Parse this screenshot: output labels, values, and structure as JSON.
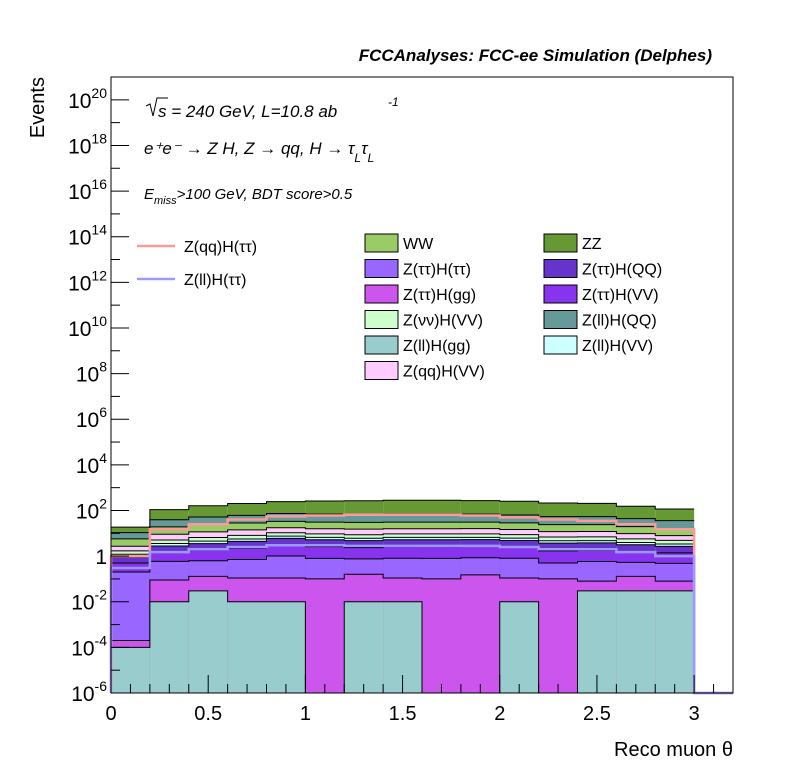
{
  "chart_data": {
    "type": "bar",
    "title": "FCCAnalyses: FCC-ee Simulation (Delphes)",
    "xlabel": "Reco muon θ",
    "ylabel": "Events",
    "xlim": [
      0,
      3.2
    ],
    "ylim": [
      1e-06,
      1e+21
    ],
    "ylog": true,
    "x_ticks": [
      "0",
      "0.5",
      "1",
      "1.5",
      "2",
      "2.5",
      "3"
    ],
    "y_ticks": [
      {
        "base": "10",
        "exp": "-6"
      },
      {
        "base": "10",
        "exp": "-4"
      },
      {
        "base": "10",
        "exp": "-2"
      },
      {
        "base": "1",
        "exp": ""
      },
      {
        "base": "10",
        "exp": "2"
      },
      {
        "base": "10",
        "exp": "4"
      },
      {
        "base": "10",
        "exp": "6"
      },
      {
        "base": "10",
        "exp": "8"
      },
      {
        "base": "10",
        "exp": "10"
      },
      {
        "base": "10",
        "exp": "12"
      },
      {
        "base": "10",
        "exp": "14"
      },
      {
        "base": "10",
        "exp": "16"
      },
      {
        "base": "10",
        "exp": "18"
      },
      {
        "base": "10",
        "exp": "20"
      }
    ],
    "annotations": {
      "sqrt_sym": "√",
      "energy_s": "s",
      "energy_rest": " = 240 GeV, L=10.8 ab",
      "energy_exp": "-1",
      "process": "e⁺e⁻ → Z H, Z → qq, H → τ",
      "process_sub1": "L",
      "process_tau2": "τ",
      "process_sub2": "L",
      "cut_e": "E",
      "cut_sub": "miss",
      "cut_rest": ">100 GeV, BDT score>0.5"
    },
    "bin_edges": [
      0,
      0.2,
      0.4,
      0.6,
      0.8,
      1.0,
      1.2,
      1.4,
      1.6,
      1.8,
      2.0,
      2.2,
      2.4,
      2.6,
      2.8,
      3.0
    ],
    "stack_series": [
      {
        "name": "Z(ll)H(gg)",
        "color": "#99cccc",
        "values": [
          0.0001,
          0.01,
          0.03,
          0.01,
          0.01,
          1e-06,
          0.01,
          0.01,
          1e-06,
          1e-06,
          0.01,
          1e-06,
          0.03,
          0.03,
          0.03
        ]
      },
      {
        "name": "Z(ττ)H(gg)",
        "color": "#cc55ee",
        "values": [
          0.0001,
          0.08,
          0.1,
          0.1,
          0.1,
          0.1,
          0.15,
          0.1,
          0.1,
          0.15,
          0.1,
          0.1,
          0.05,
          0.1,
          0.05
        ]
      },
      {
        "name": "Z(ττ)H(ττ)",
        "color": "#9966ff",
        "values": [
          0.2,
          0.5,
          0.5,
          0.6,
          0.9,
          0.7,
          0.6,
          0.7,
          0.7,
          0.7,
          0.7,
          0.4,
          0.5,
          0.4,
          0.4
        ]
      },
      {
        "name": "Z(ττ)H(VV)",
        "color": "#8833ee",
        "values": [
          0.3,
          1.0,
          1.2,
          1.5,
          2.0,
          1.8,
          1.6,
          1.8,
          1.8,
          1.8,
          1.6,
          1.2,
          1.2,
          1.0,
          0.9
        ]
      },
      {
        "name": "Z(ττ)H(QQ)",
        "color": "#6633cc",
        "values": [
          0.4,
          1.2,
          1.7,
          2.2,
          3.0,
          2.6,
          2.4,
          2.6,
          2.6,
          2.6,
          2.4,
          2.0,
          2.0,
          1.6,
          1.3
        ]
      },
      {
        "name": "Z(ll)H(VV)",
        "color": "#ccffff",
        "values": [
          0.3,
          0.8,
          1.0,
          1.2,
          1.5,
          1.4,
          1.3,
          1.4,
          1.4,
          1.4,
          1.3,
          1.0,
          1.0,
          0.8,
          0.7
        ]
      },
      {
        "name": "Z(νν)H(VV)",
        "color": "#ccffcc",
        "values": [
          0.5,
          1.5,
          2.0,
          2.5,
          3.0,
          2.8,
          2.6,
          2.8,
          2.8,
          2.8,
          2.6,
          2.2,
          2.2,
          1.8,
          1.5
        ]
      },
      {
        "name": "Z(qq)H(VV)",
        "color": "#ffccff",
        "values": [
          1.0,
          4.0,
          5.0,
          6.0,
          7.0,
          6.5,
          6.5,
          6.5,
          6.5,
          6.5,
          6.0,
          5.0,
          5.0,
          4.0,
          3.0
        ]
      },
      {
        "name": "WW",
        "color": "#99cc66",
        "values": [
          3,
          10,
          12,
          14,
          16,
          15,
          15,
          15,
          15,
          15,
          14,
          12,
          12,
          10,
          8
        ]
      },
      {
        "name": "Z(ll)H(QQ)",
        "color": "#669999",
        "values": [
          5,
          20,
          28,
          33,
          40,
          38,
          38,
          40,
          40,
          38,
          35,
          30,
          30,
          24,
          20
        ]
      },
      {
        "name": "ZZ",
        "color": "#669933",
        "values": [
          8,
          70,
          110,
          140,
          170,
          190,
          200,
          210,
          210,
          200,
          190,
          160,
          150,
          110,
          80
        ]
      }
    ],
    "line_series": [
      {
        "name": "Z(qq)H(ττ)",
        "color": "#ff9999",
        "values": [
          1,
          15,
          25,
          40,
          55,
          60,
          65,
          65,
          65,
          60,
          50,
          40,
          35,
          25,
          15
        ]
      },
      {
        "name": "Z(ll)H(ττ)",
        "color": "#9999ff",
        "values": [
          0.3,
          1.5,
          2.0,
          2.5,
          3.0,
          3.0,
          2.8,
          2.8,
          2.8,
          2.8,
          2.5,
          2.0,
          2.0,
          1.5,
          1.0
        ]
      }
    ],
    "legend_columns": [
      [
        "WW",
        "Z(ττ)H(ττ)",
        "Z(ττ)H(gg)",
        "Z(νν)H(VV)",
        "Z(ll)H(gg)",
        "Z(qq)H(VV)"
      ],
      [
        "ZZ",
        "Z(ττ)H(QQ)",
        "Z(ττ)H(VV)",
        "Z(ll)H(QQ)",
        "Z(ll)H(VV)"
      ]
    ],
    "legend_lines": [
      "Z(qq)H(ττ)",
      "Z(ll)H(ττ)"
    ],
    "legend_placement": "top-inside",
    "grid": false
  }
}
